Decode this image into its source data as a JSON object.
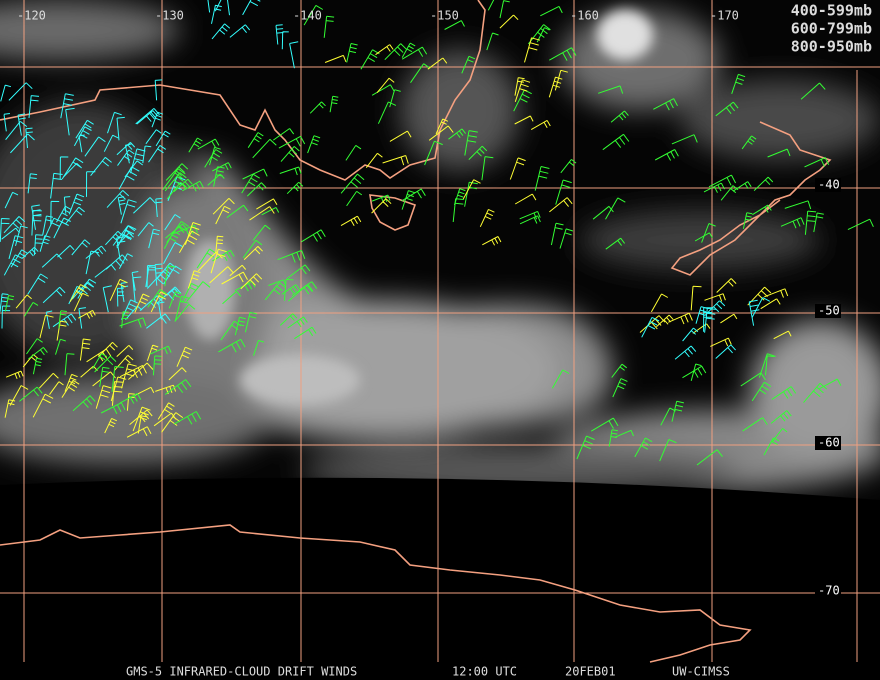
{
  "longitude_labels": [
    "-120",
    "-130",
    "-140",
    "-150",
    "-160",
    "-170"
  ],
  "latitude_labels": [
    "-40",
    "-50",
    "-60",
    "-70"
  ],
  "legend": [
    {
      "label": "400-599mb",
      "color": "#33ff33"
    },
    {
      "label": "600-799mb",
      "color": "#ffff33"
    },
    {
      "label": "800-950mb",
      "color": "#33ffff"
    }
  ],
  "footer": {
    "product": "GMS-5 INFRARED-CLOUD DRIFT WINDS",
    "time": "12:00 UTC",
    "date": "20FEB01",
    "source": "UW-CIMSS"
  }
}
